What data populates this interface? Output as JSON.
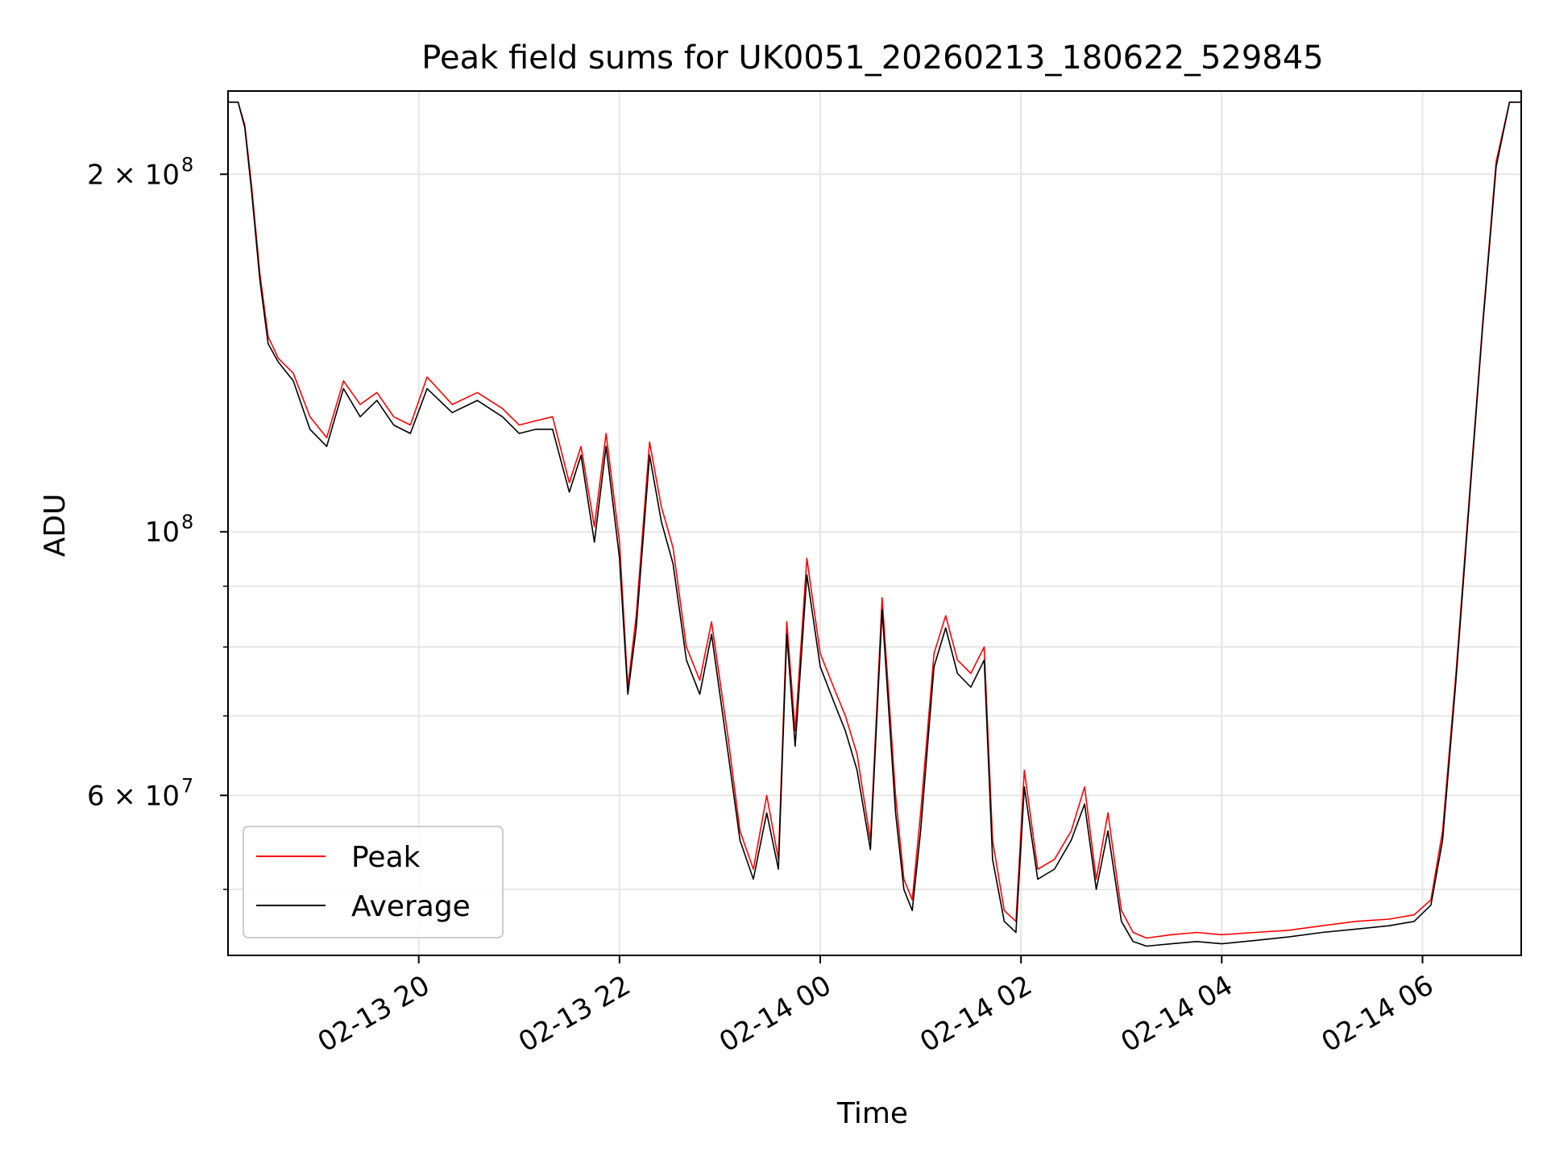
{
  "chart_data": {
    "type": "line",
    "title": "Peak field sums for UK0051_20260213_180622_529845",
    "xlabel": "Time",
    "ylabel": "ADU",
    "y_scale": "log",
    "xlim": [
      "2026-02-13 18:06",
      "2026-02-14 06:59"
    ],
    "ylim": [
      44000000,
      235000000
    ],
    "x_ticks": [
      {
        "value": "2026-02-13 20:00",
        "label": "02-13 20"
      },
      {
        "value": "2026-02-13 22:00",
        "label": "02-13 22"
      },
      {
        "value": "2026-02-14 00:00",
        "label": "02-14 00"
      },
      {
        "value": "2026-02-14 02:00",
        "label": "02-14 02"
      },
      {
        "value": "2026-02-14 04:00",
        "label": "02-14 04"
      },
      {
        "value": "2026-02-14 06:00",
        "label": "02-14 06"
      }
    ],
    "y_major_ticks": [
      {
        "value": 60000000,
        "mantissa": "6",
        "exponent": "7"
      },
      {
        "value": 100000000,
        "mantissa": "",
        "exponent": "8"
      },
      {
        "value": 200000000,
        "mantissa": "2",
        "exponent": "8"
      }
    ],
    "y_minor_ticks": [
      50000000,
      70000000,
      80000000,
      90000000,
      300000000
    ],
    "grid": true,
    "legend_position": "lower-left",
    "series": [
      {
        "name": "Peak",
        "color": "#ff0000",
        "x": [
          "2026-02-13 18:06",
          "2026-02-13 18:12",
          "2026-02-13 18:16",
          "2026-02-13 18:20",
          "2026-02-13 18:25",
          "2026-02-13 18:30",
          "2026-02-13 18:36",
          "2026-02-13 18:45",
          "2026-02-13 18:55",
          "2026-02-13 19:05",
          "2026-02-13 19:15",
          "2026-02-13 19:25",
          "2026-02-13 19:35",
          "2026-02-13 19:45",
          "2026-02-13 19:55",
          "2026-02-13 20:05",
          "2026-02-13 20:20",
          "2026-02-13 20:35",
          "2026-02-13 20:50",
          "2026-02-13 21:00",
          "2026-02-13 21:10",
          "2026-02-13 21:20",
          "2026-02-13 21:30",
          "2026-02-13 21:37",
          "2026-02-13 21:45",
          "2026-02-13 21:52",
          "2026-02-13 22:00",
          "2026-02-13 22:05",
          "2026-02-13 22:10",
          "2026-02-13 22:18",
          "2026-02-13 22:25",
          "2026-02-13 22:32",
          "2026-02-13 22:40",
          "2026-02-13 22:48",
          "2026-02-13 22:55",
          "2026-02-13 23:05",
          "2026-02-13 23:12",
          "2026-02-13 23:20",
          "2026-02-13 23:28",
          "2026-02-13 23:35",
          "2026-02-13 23:40",
          "2026-02-13 23:45",
          "2026-02-13 23:52",
          "2026-02-14 00:00",
          "2026-02-14 00:08",
          "2026-02-14 00:15",
          "2026-02-14 00:22",
          "2026-02-14 00:30",
          "2026-02-14 00:37",
          "2026-02-14 00:45",
          "2026-02-14 00:50",
          "2026-02-14 00:55",
          "2026-02-14 01:00",
          "2026-02-14 01:08",
          "2026-02-14 01:15",
          "2026-02-14 01:22",
          "2026-02-14 01:30",
          "2026-02-14 01:38",
          "2026-02-14 01:43",
          "2026-02-14 01:50",
          "2026-02-14 01:57",
          "2026-02-14 02:02",
          "2026-02-14 02:10",
          "2026-02-14 02:20",
          "2026-02-14 02:30",
          "2026-02-14 02:38",
          "2026-02-14 02:45",
          "2026-02-14 02:52",
          "2026-02-14 03:00",
          "2026-02-14 03:07",
          "2026-02-14 03:15",
          "2026-02-14 03:30",
          "2026-02-14 03:45",
          "2026-02-14 04:00",
          "2026-02-14 04:20",
          "2026-02-14 04:40",
          "2026-02-14 05:00",
          "2026-02-14 05:20",
          "2026-02-14 05:40",
          "2026-02-14 05:55",
          "2026-02-14 06:05",
          "2026-02-14 06:12",
          "2026-02-14 06:20",
          "2026-02-14 06:28",
          "2026-02-14 06:36",
          "2026-02-14 06:44",
          "2026-02-14 06:52",
          "2026-02-14 06:59"
        ],
        "y": [
          230000000,
          230000000,
          220000000,
          196000000,
          165000000,
          146000000,
          140000000,
          136000000,
          125000000,
          120000000,
          134000000,
          128000000,
          131000000,
          125000000,
          123000000,
          135000000,
          128000000,
          131000000,
          127000000,
          123000000,
          124000000,
          125000000,
          110000000,
          118000000,
          101000000,
          121000000,
          98000000,
          74000000,
          85000000,
          119000000,
          105000000,
          97000000,
          80000000,
          75000000,
          84000000,
          67000000,
          56000000,
          52000000,
          60000000,
          53000000,
          84000000,
          68000000,
          95000000,
          79000000,
          74000000,
          70000000,
          65000000,
          55000000,
          88000000,
          60000000,
          51000000,
          49000000,
          58000000,
          79000000,
          85000000,
          78000000,
          76000000,
          80000000,
          55000000,
          48000000,
          47000000,
          63000000,
          52000000,
          53000000,
          56000000,
          61000000,
          51000000,
          58000000,
          48000000,
          46000000,
          45500000,
          45800000,
          46000000,
          45800000,
          46000000,
          46200000,
          46600000,
          47000000,
          47200000,
          47600000,
          49000000,
          56000000,
          76000000,
          107000000,
          150000000,
          205000000,
          230000000,
          230000000
        ]
      },
      {
        "name": "Average",
        "color": "#000000",
        "x": [
          "2026-02-13 18:06",
          "2026-02-13 18:12",
          "2026-02-13 18:16",
          "2026-02-13 18:20",
          "2026-02-13 18:25",
          "2026-02-13 18:30",
          "2026-02-13 18:36",
          "2026-02-13 18:45",
          "2026-02-13 18:55",
          "2026-02-13 19:05",
          "2026-02-13 19:15",
          "2026-02-13 19:25",
          "2026-02-13 19:35",
          "2026-02-13 19:45",
          "2026-02-13 19:55",
          "2026-02-13 20:05",
          "2026-02-13 20:20",
          "2026-02-13 20:35",
          "2026-02-13 20:50",
          "2026-02-13 21:00",
          "2026-02-13 21:10",
          "2026-02-13 21:20",
          "2026-02-13 21:30",
          "2026-02-13 21:37",
          "2026-02-13 21:45",
          "2026-02-13 21:52",
          "2026-02-13 22:00",
          "2026-02-13 22:05",
          "2026-02-13 22:10",
          "2026-02-13 22:18",
          "2026-02-13 22:25",
          "2026-02-13 22:32",
          "2026-02-13 22:40",
          "2026-02-13 22:48",
          "2026-02-13 22:55",
          "2026-02-13 23:05",
          "2026-02-13 23:12",
          "2026-02-13 23:20",
          "2026-02-13 23:28",
          "2026-02-13 23:35",
          "2026-02-13 23:40",
          "2026-02-13 23:45",
          "2026-02-13 23:52",
          "2026-02-14 00:00",
          "2026-02-14 00:08",
          "2026-02-14 00:15",
          "2026-02-14 00:22",
          "2026-02-14 00:30",
          "2026-02-14 00:37",
          "2026-02-14 00:45",
          "2026-02-14 00:50",
          "2026-02-14 00:55",
          "2026-02-14 01:00",
          "2026-02-14 01:08",
          "2026-02-14 01:15",
          "2026-02-14 01:22",
          "2026-02-14 01:30",
          "2026-02-14 01:38",
          "2026-02-14 01:43",
          "2026-02-14 01:50",
          "2026-02-14 01:57",
          "2026-02-14 02:02",
          "2026-02-14 02:10",
          "2026-02-14 02:20",
          "2026-02-14 02:30",
          "2026-02-14 02:38",
          "2026-02-14 02:45",
          "2026-02-14 02:52",
          "2026-02-14 03:00",
          "2026-02-14 03:07",
          "2026-02-14 03:15",
          "2026-02-14 03:30",
          "2026-02-14 03:45",
          "2026-02-14 04:00",
          "2026-02-14 04:20",
          "2026-02-14 04:40",
          "2026-02-14 05:00",
          "2026-02-14 05:20",
          "2026-02-14 05:40",
          "2026-02-14 05:55",
          "2026-02-14 06:05",
          "2026-02-14 06:12",
          "2026-02-14 06:20",
          "2026-02-14 06:28",
          "2026-02-14 06:36",
          "2026-02-14 06:44",
          "2026-02-14 06:52",
          "2026-02-14 06:59"
        ],
        "y": [
          230000000,
          230000000,
          219000000,
          194000000,
          163000000,
          144000000,
          139000000,
          134000000,
          122000000,
          118000000,
          132000000,
          125000000,
          129000000,
          123000000,
          121000000,
          132000000,
          126000000,
          129000000,
          125000000,
          121000000,
          122000000,
          122000000,
          108000000,
          116000000,
          98000000,
          118000000,
          95000000,
          73000000,
          83000000,
          116000000,
          102000000,
          94000000,
          78000000,
          73000000,
          82000000,
          65000000,
          55000000,
          51000000,
          58000000,
          52000000,
          82000000,
          66000000,
          92000000,
          77000000,
          72000000,
          68000000,
          63000000,
          54000000,
          86000000,
          58000000,
          50000000,
          48000000,
          56000000,
          77000000,
          83000000,
          76000000,
          74000000,
          78000000,
          53000000,
          47000000,
          46000000,
          61000000,
          51000000,
          52000000,
          55000000,
          59000000,
          50000000,
          56000000,
          47000000,
          45200000,
          44800000,
          45000000,
          45200000,
          45000000,
          45300000,
          45600000,
          46000000,
          46300000,
          46600000,
          47000000,
          48500000,
          55000000,
          75000000,
          106000000,
          149000000,
          203000000,
          230000000,
          230000000
        ]
      }
    ]
  }
}
